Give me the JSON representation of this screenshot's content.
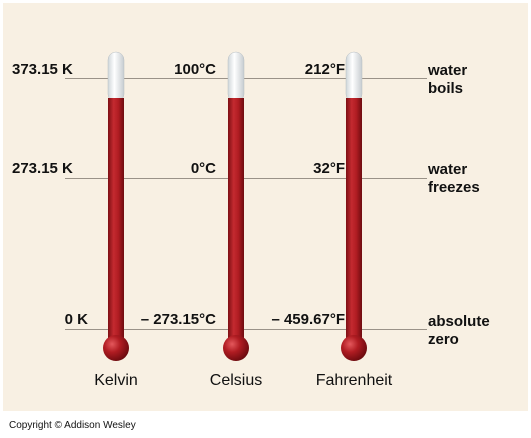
{
  "diagram": {
    "scales": [
      {
        "name": "Kelvin",
        "boils": "373.15 K",
        "freezes": "273.15 K",
        "zero": "0 K"
      },
      {
        "name": "Celsius",
        "boils": "100°C",
        "freezes": "0°C",
        "zero": "– 273.15°C"
      },
      {
        "name": "Fahrenheit",
        "boils": "212°F",
        "freezes": "32°F",
        "zero": "– 459.67°F"
      }
    ],
    "reference_points": {
      "boils_line1": "water",
      "boils_line2": "boils",
      "freezes_line1": "water",
      "freezes_line2": "freezes",
      "zero_line1": "absolute",
      "zero_line2": "zero"
    },
    "colors": {
      "background": "#f8f0e3",
      "mercury": "#b01c22",
      "empty_tube": "#f4f4f4",
      "line": "#9a9288"
    }
  },
  "copyright": "Copyright © Addison Wesley"
}
